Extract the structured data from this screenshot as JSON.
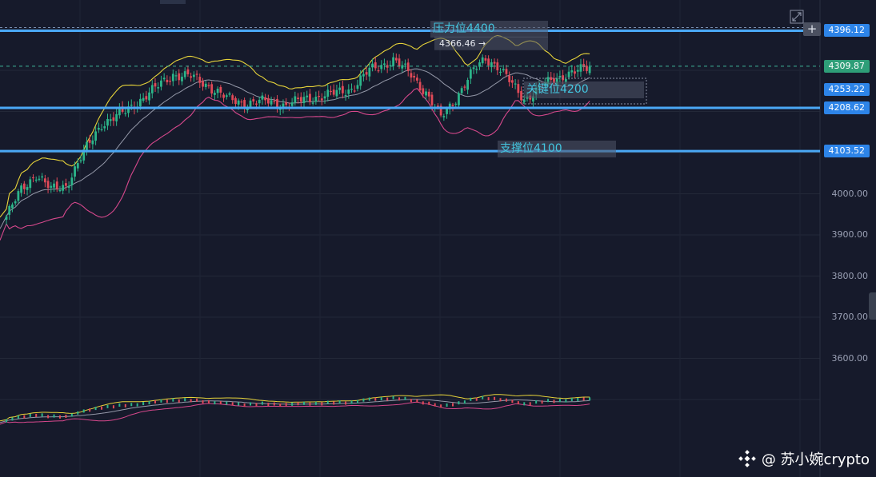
{
  "chart_data": {
    "type": "candlestick",
    "y_axis_ticks": [
      {
        "label": "4000.00",
        "value": 4000
      },
      {
        "label": "3900.00",
        "value": 3900
      },
      {
        "label": "3800.00",
        "value": 3800
      },
      {
        "label": "3700.00",
        "value": 3700
      },
      {
        "label": "3600.00",
        "value": 3600
      }
    ],
    "ylim": [
      3515,
      4470
    ],
    "price_badges": [
      {
        "label": "4396.12",
        "value": 4396.12,
        "color": "#2d84e8"
      },
      {
        "label": "4309.87",
        "value": 4309.87,
        "color": "#2e9e78"
      },
      {
        "label": "4253.22",
        "value": 4253.22,
        "color": "#2d84e8"
      },
      {
        "label": "4208.62",
        "value": 4208.62,
        "color": "#2d84e8"
      },
      {
        "label": "4103.52",
        "value": 4103.52,
        "color": "#2d84e8"
      }
    ],
    "horizontal_lines": [
      {
        "value": 4396.12,
        "color": "#4aa8f5"
      },
      {
        "value": 4208.62,
        "color": "#4aa8f5"
      },
      {
        "value": 4103.52,
        "color": "#4aa8f5"
      }
    ],
    "current_price_line": {
      "value": 4309.87,
      "color": "#3fb598"
    },
    "annotations": [
      {
        "text": "压力位4400",
        "value": 4400
      },
      {
        "text": "关键位4200",
        "value": 4253
      },
      {
        "text": "支撑位4100",
        "value": 4108
      }
    ],
    "high_marker": {
      "text": "4366.46 →",
      "value": 4366.46
    },
    "colors": {
      "up": "#2cb58a",
      "down": "#e04a58",
      "upper_band": "#e6d33a",
      "middle_band": "#9498a8",
      "lower_band": "#d6488c"
    }
  },
  "watermark": {
    "text": "@ 苏小婉crypto",
    "icon": "binance-logo-icon"
  },
  "controls": {
    "plus": "+",
    "expand_icon": "expand-icon"
  }
}
